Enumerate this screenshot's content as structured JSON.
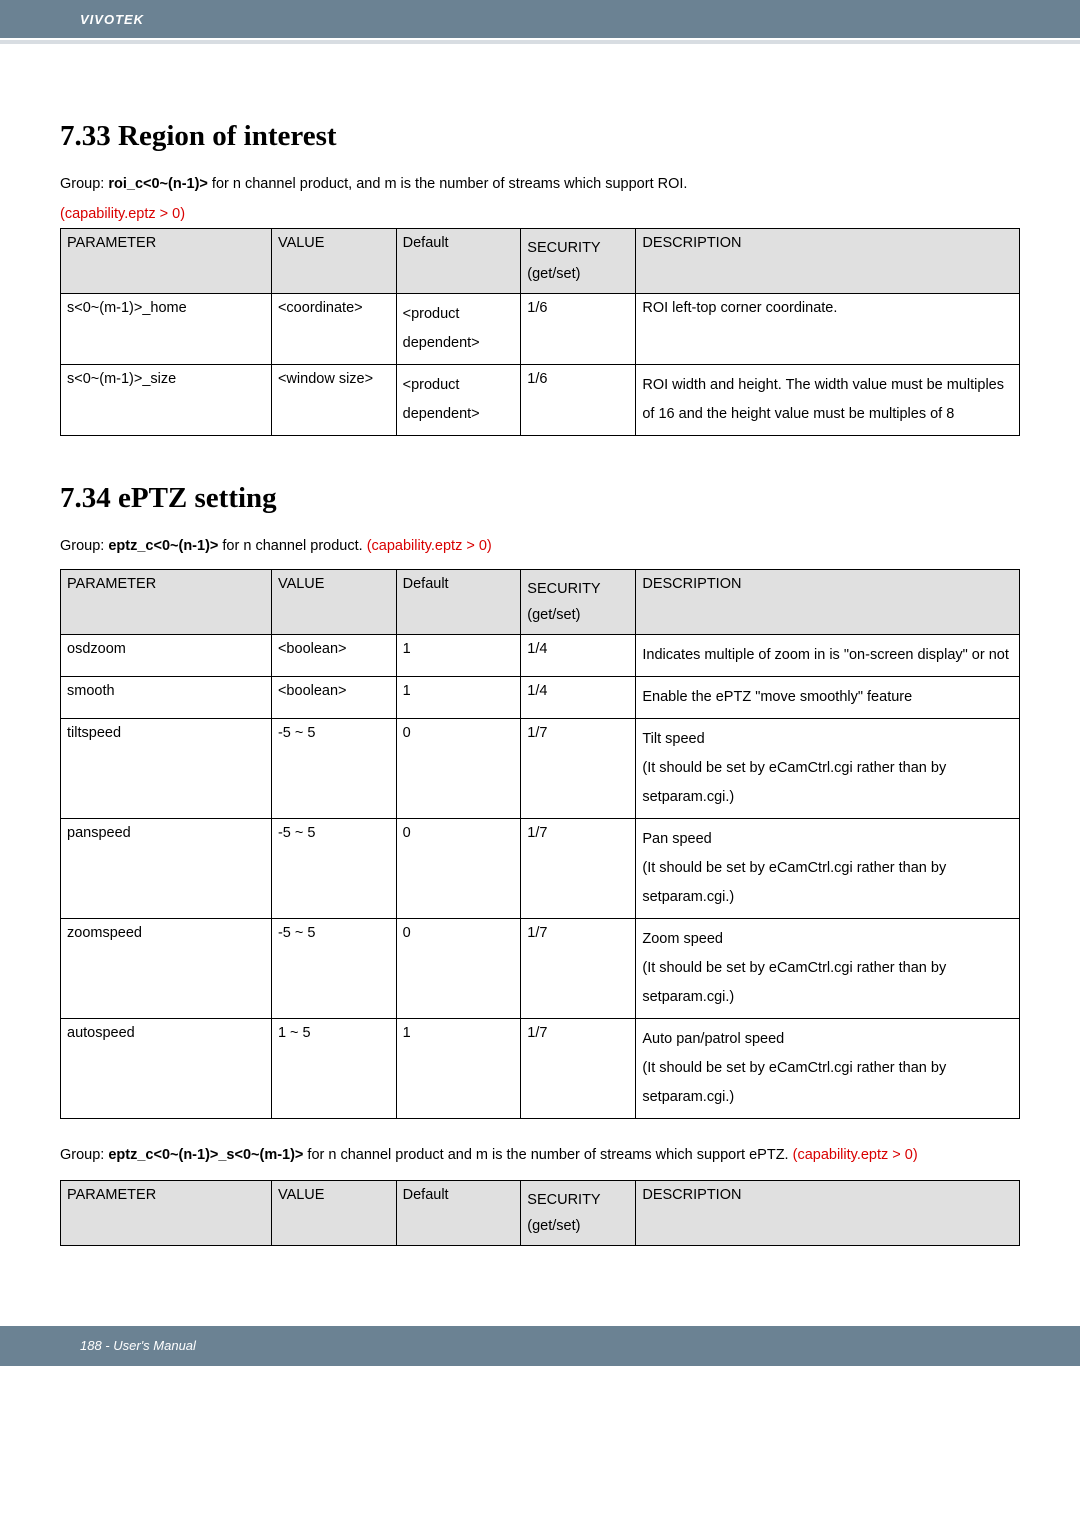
{
  "header": {
    "brand": "VIVOTEK"
  },
  "section1": {
    "title": "7.33 Region of interest",
    "group_prefix": "Group: ",
    "group_bold": "roi_c<0~(n-1)>",
    "group_suffix": " for n channel product, and m is the number of streams which support ROI.",
    "capability": "(capability.eptz > 0)",
    "headers": {
      "parameter": "PARAMETER",
      "value": "VALUE",
      "default": "Default",
      "security": "SECURITY",
      "security_sub": "(get/set)",
      "description": "DESCRIPTION"
    },
    "rows": [
      {
        "parameter": "s<0~(m-1)>_home",
        "value": "<coordinate>",
        "default": "<product dependent>",
        "security": "1/6",
        "description": "ROI left-top corner coordinate."
      },
      {
        "parameter": "s<0~(m-1)>_size",
        "value": "<window size>",
        "default": "<product dependent>",
        "security": "1/6",
        "description": "ROI width and height. The width value must be multiples of 16 and the height value must be multiples of 8"
      }
    ]
  },
  "section2": {
    "title": "7.34 ePTZ setting",
    "group_prefix": "Group: ",
    "group_bold": "eptz_c<0~(n-1)>",
    "group_suffix": " for n channel product. ",
    "capability": "(capability.eptz > 0)",
    "headers": {
      "parameter": "PARAMETER",
      "value": "VALUE",
      "default": "Default",
      "security": "SECURITY",
      "security_sub": "(get/set)",
      "description": "DESCRIPTION"
    },
    "rows": [
      {
        "parameter": "osdzoom",
        "value": "<boolean>",
        "default": "1",
        "security": "1/4",
        "description": "Indicates multiple of zoom in is \"on-screen display\" or not"
      },
      {
        "parameter": "smooth",
        "value": "<boolean>",
        "default": "1",
        "security": "1/4",
        "description": "Enable the ePTZ \"move smoothly\" feature"
      },
      {
        "parameter": "tiltspeed",
        "value": "-5 ~ 5",
        "default": "0",
        "security": "1/7",
        "description": "Tilt speed\n(It should be set by eCamCtrl.cgi rather than by setparam.cgi.)"
      },
      {
        "parameter": "panspeed",
        "value": "-5 ~ 5",
        "default": "0",
        "security": "1/7",
        "description": "Pan speed\n(It should be set by eCamCtrl.cgi rather than by setparam.cgi.)"
      },
      {
        "parameter": "zoomspeed",
        "value": "-5 ~ 5",
        "default": "0",
        "security": "1/7",
        "description": "Zoom speed\n(It should be set by eCamCtrl.cgi rather than by setparam.cgi.)"
      },
      {
        "parameter": "autospeed",
        "value": "1 ~ 5",
        "default": "1",
        "security": "1/7",
        "description": "Auto pan/patrol speed\n(It should be set by eCamCtrl.cgi rather than by setparam.cgi.)"
      }
    ]
  },
  "section3": {
    "group_prefix": "Group: ",
    "group_bold": "eptz_c<0~(n-1)>_s<0~(m-1)>",
    "group_suffix": " for n channel product and m is the number of streams which support ePTZ. ",
    "capability": "(capability.eptz > 0)",
    "headers": {
      "parameter": "PARAMETER",
      "value": "VALUE",
      "default": "Default",
      "security": "SECURITY",
      "security_sub": "(get/set)",
      "description": "DESCRIPTION"
    }
  },
  "footer": {
    "text": "188 - User's Manual"
  }
}
